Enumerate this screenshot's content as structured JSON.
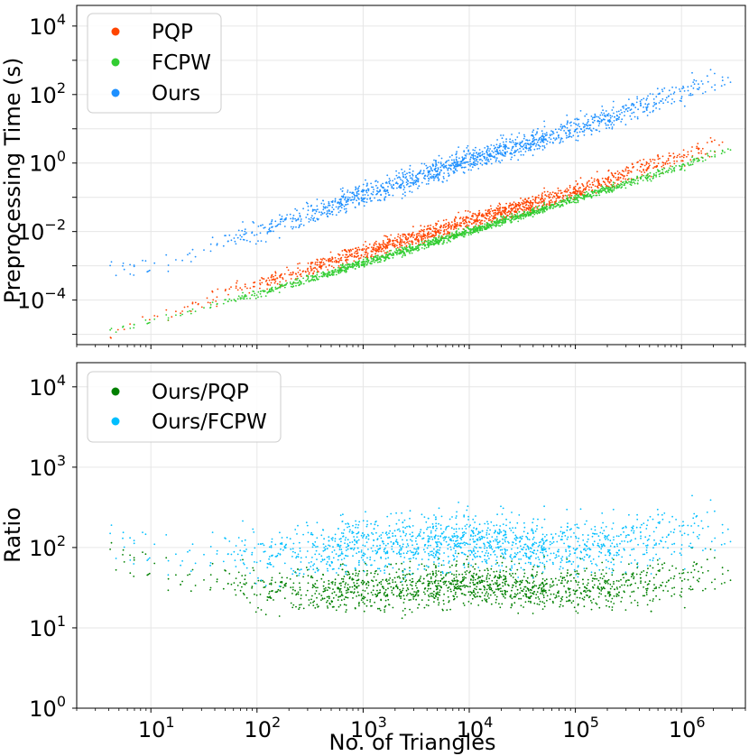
{
  "chart_data": [
    {
      "type": "scatter",
      "xscale": "log",
      "yscale": "log",
      "xlim": [
        2,
        4000000
      ],
      "ylim": [
        5e-06,
        40000
      ],
      "ylabel": "Preprocessing Time (s)",
      "xlabel": "",
      "grid": true,
      "legend_position": "top-left",
      "ytick_labels": [
        "10^-4",
        "10^-2",
        "10^0",
        "10^2",
        "10^4"
      ],
      "ytick_values": [
        0.0001,
        0.01,
        1,
        100,
        10000
      ],
      "series": [
        {
          "name": "PQP",
          "color": "#ff4500",
          "trend": [
            [
              4,
              1e-05
            ],
            [
              10,
              3e-05
            ],
            [
              100,
              0.0003
            ],
            [
              1000,
              0.0025
            ],
            [
              10000,
              0.02
            ],
            [
              100000,
              0.15
            ],
            [
              300000,
              0.5
            ],
            [
              1000000,
              1.6
            ],
            [
              3000000,
              5
            ]
          ],
          "spread_decades": 0.25
        },
        {
          "name": "FCPW",
          "color": "#32cd32",
          "trend": [
            [
              4,
              1.2e-05
            ],
            [
              10,
              2.5e-05
            ],
            [
              100,
              0.00015
            ],
            [
              1000,
              0.0012
            ],
            [
              10000,
              0.01
            ],
            [
              100000,
              0.09
            ],
            [
              1000000,
              0.8
            ],
            [
              3000000,
              3
            ]
          ],
          "spread_decades": 0.12
        },
        {
          "name": "Ours",
          "color": "#1e90ff",
          "trend": [
            [
              4,
              0.0008
            ],
            [
              10,
              0.001
            ],
            [
              100,
              0.01
            ],
            [
              1000,
              0.12
            ],
            [
              10000,
              1.2
            ],
            [
              100000,
              10
            ],
            [
              1000000,
              120
            ],
            [
              3000000,
              400
            ]
          ],
          "spread_decades": 0.35
        }
      ]
    },
    {
      "type": "scatter",
      "xscale": "log",
      "yscale": "log",
      "xlim": [
        2,
        4000000
      ],
      "ylim": [
        1,
        20000
      ],
      "xlabel": "No. of Triangles",
      "ylabel": "Ratio",
      "grid": true,
      "legend_position": "top-left",
      "xtick_labels": [
        "10^1",
        "10^2",
        "10^3",
        "10^4",
        "10^5",
        "10^6"
      ],
      "xtick_values": [
        10,
        100,
        1000,
        10000,
        100000,
        1000000
      ],
      "ytick_labels": [
        "10^0",
        "10^1",
        "10^2",
        "10^3",
        "10^4"
      ],
      "ytick_values": [
        1,
        10,
        100,
        1000,
        10000
      ],
      "series": [
        {
          "name": "Ours/PQP",
          "color": "#008000",
          "trend": [
            [
              4,
              80
            ],
            [
              10,
              60
            ],
            [
              100,
              30
            ],
            [
              1000,
              30
            ],
            [
              10000,
              35
            ],
            [
              100000,
              30
            ],
            [
              1000000,
              40
            ],
            [
              3000000,
              60
            ]
          ],
          "spread_decades": 0.28
        },
        {
          "name": "Ours/FCPW",
          "color": "#00bfff",
          "trend": [
            [
              4,
              120
            ],
            [
              10,
              100
            ],
            [
              100,
              80
            ],
            [
              1000,
              110
            ],
            [
              10000,
              120
            ],
            [
              100000,
              100
            ],
            [
              1000000,
              150
            ],
            [
              3000000,
              200
            ]
          ],
          "spread_decades": 0.35
        }
      ]
    }
  ],
  "legend": {
    "top": [
      {
        "label": "PQP",
        "color": "#ff4500"
      },
      {
        "label": "FCPW",
        "color": "#32cd32"
      },
      {
        "label": "Ours",
        "color": "#1e90ff"
      }
    ],
    "bottom": [
      {
        "label": "Ours/PQP",
        "color": "#008000"
      },
      {
        "label": "Ours/FCPW",
        "color": "#00bfff"
      }
    ]
  }
}
